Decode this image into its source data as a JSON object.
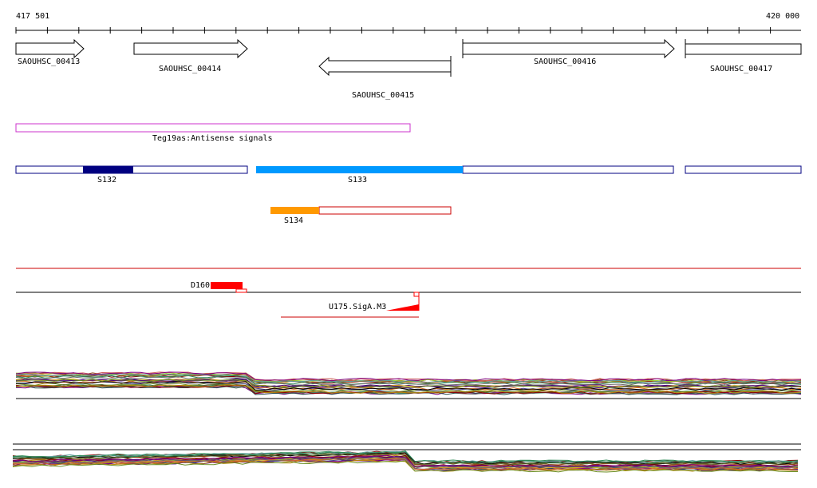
{
  "ruler": {
    "start_label": "417 501",
    "end_label": "420 000"
  },
  "genes": [
    {
      "name": "SAOUHSC_00413",
      "strand": "+"
    },
    {
      "name": "SAOUHSC_00414",
      "strand": "+"
    },
    {
      "name": "SAOUHSC_00415",
      "strand": "-"
    },
    {
      "name": "SAOUHSC_00416",
      "strand": "+"
    },
    {
      "name": "SAOUHSC_00417",
      "strand": "+"
    }
  ],
  "antisense": {
    "label": "Teg19as:Antisense signals",
    "color": "#cc33cc"
  },
  "segments": [
    {
      "label": "S132",
      "color": "#000080"
    },
    {
      "label": "S133",
      "color": "#0099ff"
    },
    {
      "label": "S134",
      "color": "#ff9900"
    }
  ],
  "features": [
    {
      "label": "D160",
      "color": "#ff0000"
    },
    {
      "label": "U175.SigA.M3",
      "color": "#ff0000"
    }
  ],
  "colors": {
    "outline_blue": "#000080",
    "red": "#cc0000"
  }
}
